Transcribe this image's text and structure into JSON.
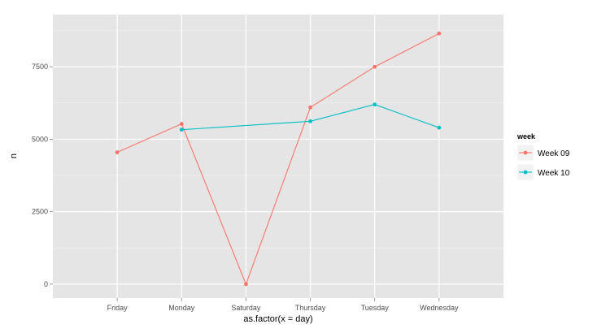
{
  "chart_data": {
    "type": "line",
    "xlabel": "as.factor(x = day)",
    "ylabel": "n",
    "categories": [
      "Friday",
      "Monday",
      "Saturday",
      "Thursday",
      "Tuesday",
      "Wednesday"
    ],
    "ylim": [
      0,
      9300
    ],
    "yticks": [
      0,
      2500,
      5000,
      7500
    ],
    "ytick_labels": [
      "0",
      "2500",
      "5000",
      "7500"
    ],
    "grid": true,
    "legend": {
      "title": "week",
      "position": "right"
    },
    "series": [
      {
        "name": "Week 09",
        "color": "#F8766D",
        "values": [
          4550,
          5530,
          0,
          6100,
          7500,
          8650
        ]
      },
      {
        "name": "Week 10",
        "color": "#00BFC4",
        "values": [
          null,
          5330,
          null,
          5620,
          6200,
          5400
        ]
      }
    ]
  }
}
